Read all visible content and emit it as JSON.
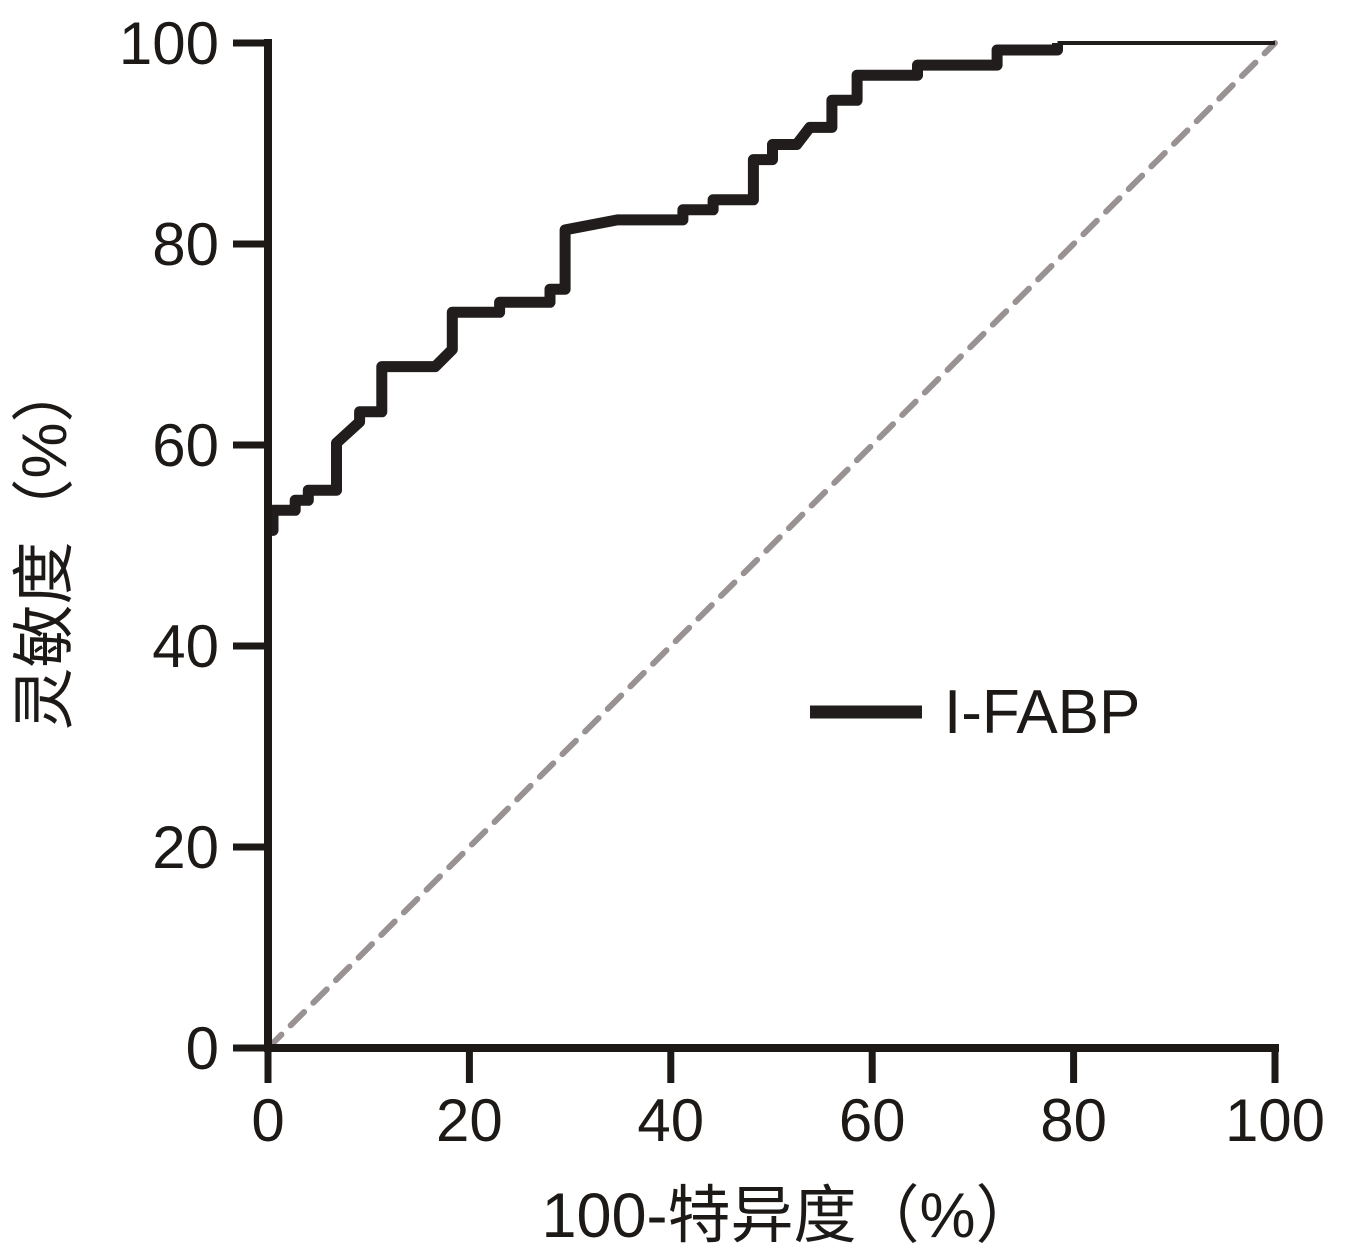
{
  "chart_data": {
    "type": "line",
    "subtype": "roc-curve",
    "title": "",
    "xlabel": "100-特异度（%）",
    "ylabel": "灵敏度（%）",
    "xlim": [
      0,
      100
    ],
    "ylim": [
      0,
      100
    ],
    "x_ticks": [
      "0",
      "20",
      "40",
      "60",
      "80",
      "100"
    ],
    "y_ticks": [
      "0",
      "20",
      "40",
      "60",
      "80",
      "100"
    ],
    "x_tick_values": [
      0,
      20,
      40,
      60,
      80,
      100
    ],
    "y_tick_values": [
      0,
      20,
      40,
      60,
      80,
      100
    ],
    "grid": false,
    "legend": {
      "label": "I-FABP",
      "position": "right-middle"
    },
    "series": [
      {
        "name": "I-FABP",
        "color": "#211d1c",
        "points": [
          [
            0,
            51.5
          ],
          [
            0.5,
            51.5
          ],
          [
            0.5,
            53.5
          ],
          [
            2.7,
            53.5
          ],
          [
            2.7,
            54.5
          ],
          [
            4.0,
            54.5
          ],
          [
            4.0,
            55.5
          ],
          [
            6.8,
            55.5
          ],
          [
            6.8,
            60.2
          ],
          [
            9.1,
            62.3
          ],
          [
            9.1,
            63.3
          ],
          [
            11.3,
            63.3
          ],
          [
            11.3,
            67.8
          ],
          [
            16.6,
            67.8
          ],
          [
            18.3,
            69.5
          ],
          [
            18.3,
            73.2
          ],
          [
            23.0,
            73.2
          ],
          [
            23.0,
            74.2
          ],
          [
            28.0,
            74.2
          ],
          [
            28.0,
            75.5
          ],
          [
            29.5,
            75.5
          ],
          [
            29.5,
            81.4
          ],
          [
            34.7,
            82.4
          ],
          [
            41.2,
            82.4
          ],
          [
            41.2,
            83.4
          ],
          [
            44.2,
            83.4
          ],
          [
            44.2,
            84.4
          ],
          [
            48.2,
            84.4
          ],
          [
            48.2,
            88.4
          ],
          [
            50.1,
            88.4
          ],
          [
            50.1,
            89.9
          ],
          [
            52.5,
            89.9
          ],
          [
            53.8,
            91.6
          ],
          [
            56.0,
            91.6
          ],
          [
            56.0,
            94.3
          ],
          [
            58.5,
            94.3
          ],
          [
            58.5,
            96.8
          ],
          [
            64.5,
            96.8
          ],
          [
            64.5,
            97.8
          ],
          [
            72.4,
            97.8
          ],
          [
            72.4,
            99.3
          ],
          [
            78.4,
            99.3
          ],
          [
            78.4,
            100
          ],
          [
            100,
            100
          ]
        ]
      }
    ],
    "reference_line": {
      "style": "dashed",
      "color": "#999292",
      "from": [
        0,
        0
      ],
      "to": [
        100,
        100
      ]
    }
  }
}
